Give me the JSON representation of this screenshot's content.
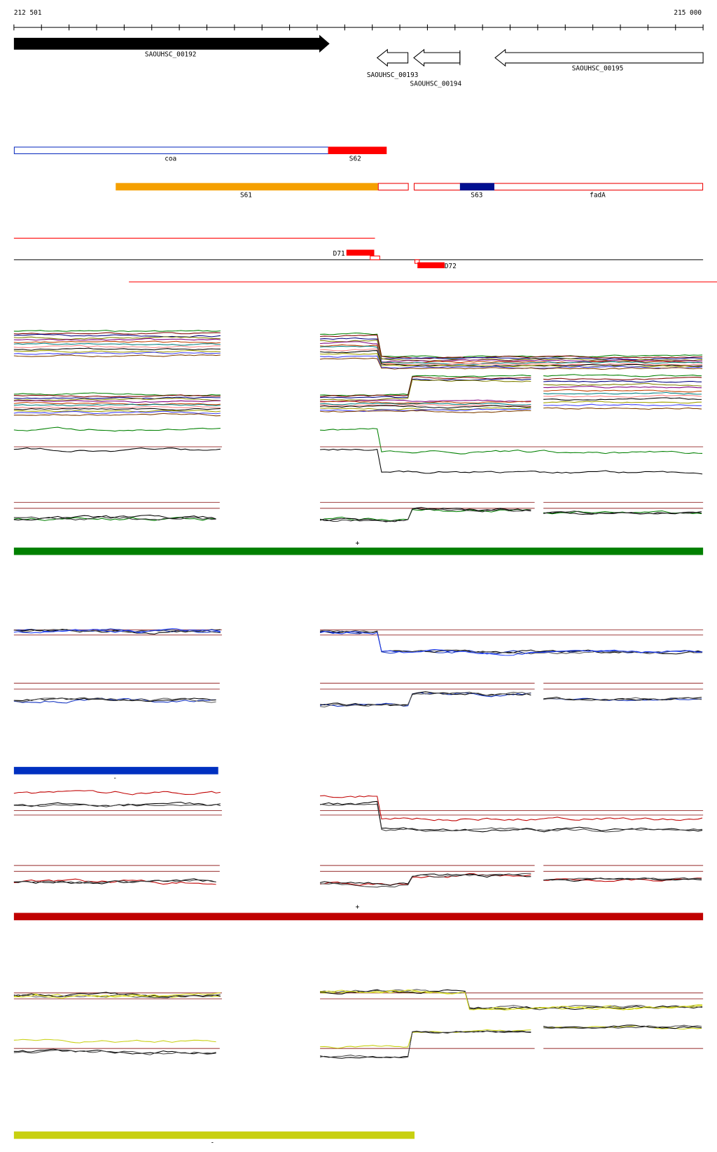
{
  "ruler": {
    "start": "212 501",
    "end": "215 000"
  },
  "genes": [
    {
      "label": "SAOUHSC_00192"
    },
    {
      "label": "SAOUHSC_00193"
    },
    {
      "label": "SAOUHSC_00194"
    },
    {
      "label": "SAOUHSC_00195"
    }
  ],
  "segments": [
    {
      "label": "coa"
    },
    {
      "label": "S62"
    },
    {
      "label": "S61"
    },
    {
      "label": "S63"
    },
    {
      "label": "fadA"
    }
  ],
  "transcripts": [
    {
      "label": "D71"
    },
    {
      "label": "D72"
    }
  ],
  "strands": [
    "+",
    "-",
    "+",
    "-"
  ]
}
